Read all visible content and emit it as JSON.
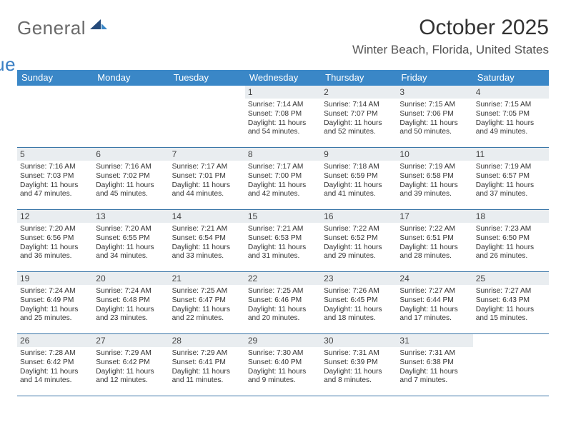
{
  "brand": {
    "word1": "General",
    "word2": "Blue"
  },
  "title": "October 2025",
  "location": "Winter Beach, Florida, United States",
  "colors": {
    "header_bg": "#3a87c7",
    "header_text": "#ffffff",
    "daynum_bg": "#e9edf0",
    "rule": "#3a76a8",
    "brand_gray": "#6a6a6a",
    "brand_blue": "#3a7fc4"
  },
  "weekdays": [
    "Sunday",
    "Monday",
    "Tuesday",
    "Wednesday",
    "Thursday",
    "Friday",
    "Saturday"
  ],
  "weeks": [
    [
      {},
      {},
      {},
      {
        "n": "1",
        "rise": "Sunrise: 7:14 AM",
        "set": "Sunset: 7:08 PM",
        "dl1": "Daylight: 11 hours",
        "dl2": "and 54 minutes."
      },
      {
        "n": "2",
        "rise": "Sunrise: 7:14 AM",
        "set": "Sunset: 7:07 PM",
        "dl1": "Daylight: 11 hours",
        "dl2": "and 52 minutes."
      },
      {
        "n": "3",
        "rise": "Sunrise: 7:15 AM",
        "set": "Sunset: 7:06 PM",
        "dl1": "Daylight: 11 hours",
        "dl2": "and 50 minutes."
      },
      {
        "n": "4",
        "rise": "Sunrise: 7:15 AM",
        "set": "Sunset: 7:05 PM",
        "dl1": "Daylight: 11 hours",
        "dl2": "and 49 minutes."
      }
    ],
    [
      {
        "n": "5",
        "rise": "Sunrise: 7:16 AM",
        "set": "Sunset: 7:03 PM",
        "dl1": "Daylight: 11 hours",
        "dl2": "and 47 minutes."
      },
      {
        "n": "6",
        "rise": "Sunrise: 7:16 AM",
        "set": "Sunset: 7:02 PM",
        "dl1": "Daylight: 11 hours",
        "dl2": "and 45 minutes."
      },
      {
        "n": "7",
        "rise": "Sunrise: 7:17 AM",
        "set": "Sunset: 7:01 PM",
        "dl1": "Daylight: 11 hours",
        "dl2": "and 44 minutes."
      },
      {
        "n": "8",
        "rise": "Sunrise: 7:17 AM",
        "set": "Sunset: 7:00 PM",
        "dl1": "Daylight: 11 hours",
        "dl2": "and 42 minutes."
      },
      {
        "n": "9",
        "rise": "Sunrise: 7:18 AM",
        "set": "Sunset: 6:59 PM",
        "dl1": "Daylight: 11 hours",
        "dl2": "and 41 minutes."
      },
      {
        "n": "10",
        "rise": "Sunrise: 7:19 AM",
        "set": "Sunset: 6:58 PM",
        "dl1": "Daylight: 11 hours",
        "dl2": "and 39 minutes."
      },
      {
        "n": "11",
        "rise": "Sunrise: 7:19 AM",
        "set": "Sunset: 6:57 PM",
        "dl1": "Daylight: 11 hours",
        "dl2": "and 37 minutes."
      }
    ],
    [
      {
        "n": "12",
        "rise": "Sunrise: 7:20 AM",
        "set": "Sunset: 6:56 PM",
        "dl1": "Daylight: 11 hours",
        "dl2": "and 36 minutes."
      },
      {
        "n": "13",
        "rise": "Sunrise: 7:20 AM",
        "set": "Sunset: 6:55 PM",
        "dl1": "Daylight: 11 hours",
        "dl2": "and 34 minutes."
      },
      {
        "n": "14",
        "rise": "Sunrise: 7:21 AM",
        "set": "Sunset: 6:54 PM",
        "dl1": "Daylight: 11 hours",
        "dl2": "and 33 minutes."
      },
      {
        "n": "15",
        "rise": "Sunrise: 7:21 AM",
        "set": "Sunset: 6:53 PM",
        "dl1": "Daylight: 11 hours",
        "dl2": "and 31 minutes."
      },
      {
        "n": "16",
        "rise": "Sunrise: 7:22 AM",
        "set": "Sunset: 6:52 PM",
        "dl1": "Daylight: 11 hours",
        "dl2": "and 29 minutes."
      },
      {
        "n": "17",
        "rise": "Sunrise: 7:22 AM",
        "set": "Sunset: 6:51 PM",
        "dl1": "Daylight: 11 hours",
        "dl2": "and 28 minutes."
      },
      {
        "n": "18",
        "rise": "Sunrise: 7:23 AM",
        "set": "Sunset: 6:50 PM",
        "dl1": "Daylight: 11 hours",
        "dl2": "and 26 minutes."
      }
    ],
    [
      {
        "n": "19",
        "rise": "Sunrise: 7:24 AM",
        "set": "Sunset: 6:49 PM",
        "dl1": "Daylight: 11 hours",
        "dl2": "and 25 minutes."
      },
      {
        "n": "20",
        "rise": "Sunrise: 7:24 AM",
        "set": "Sunset: 6:48 PM",
        "dl1": "Daylight: 11 hours",
        "dl2": "and 23 minutes."
      },
      {
        "n": "21",
        "rise": "Sunrise: 7:25 AM",
        "set": "Sunset: 6:47 PM",
        "dl1": "Daylight: 11 hours",
        "dl2": "and 22 minutes."
      },
      {
        "n": "22",
        "rise": "Sunrise: 7:25 AM",
        "set": "Sunset: 6:46 PM",
        "dl1": "Daylight: 11 hours",
        "dl2": "and 20 minutes."
      },
      {
        "n": "23",
        "rise": "Sunrise: 7:26 AM",
        "set": "Sunset: 6:45 PM",
        "dl1": "Daylight: 11 hours",
        "dl2": "and 18 minutes."
      },
      {
        "n": "24",
        "rise": "Sunrise: 7:27 AM",
        "set": "Sunset: 6:44 PM",
        "dl1": "Daylight: 11 hours",
        "dl2": "and 17 minutes."
      },
      {
        "n": "25",
        "rise": "Sunrise: 7:27 AM",
        "set": "Sunset: 6:43 PM",
        "dl1": "Daylight: 11 hours",
        "dl2": "and 15 minutes."
      }
    ],
    [
      {
        "n": "26",
        "rise": "Sunrise: 7:28 AM",
        "set": "Sunset: 6:42 PM",
        "dl1": "Daylight: 11 hours",
        "dl2": "and 14 minutes."
      },
      {
        "n": "27",
        "rise": "Sunrise: 7:29 AM",
        "set": "Sunset: 6:42 PM",
        "dl1": "Daylight: 11 hours",
        "dl2": "and 12 minutes."
      },
      {
        "n": "28",
        "rise": "Sunrise: 7:29 AM",
        "set": "Sunset: 6:41 PM",
        "dl1": "Daylight: 11 hours",
        "dl2": "and 11 minutes."
      },
      {
        "n": "29",
        "rise": "Sunrise: 7:30 AM",
        "set": "Sunset: 6:40 PM",
        "dl1": "Daylight: 11 hours",
        "dl2": "and 9 minutes."
      },
      {
        "n": "30",
        "rise": "Sunrise: 7:31 AM",
        "set": "Sunset: 6:39 PM",
        "dl1": "Daylight: 11 hours",
        "dl2": "and 8 minutes."
      },
      {
        "n": "31",
        "rise": "Sunrise: 7:31 AM",
        "set": "Sunset: 6:38 PM",
        "dl1": "Daylight: 11 hours",
        "dl2": "and 7 minutes."
      },
      {}
    ]
  ]
}
